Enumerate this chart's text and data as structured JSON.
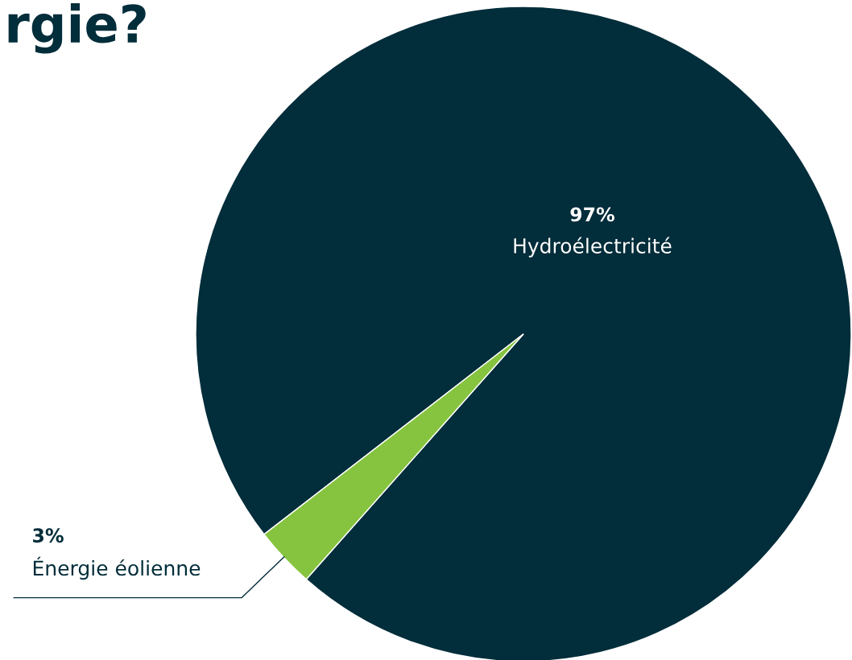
{
  "chart_data": {
    "type": "pie",
    "title": "rgie?",
    "categories": [
      "Hydroélectricité",
      "Énergie éolienne"
    ],
    "values": [
      97,
      3
    ],
    "colors": [
      "#022d3a",
      "#86c440"
    ],
    "value_labels": [
      "97%",
      "3%"
    ],
    "legend": false
  }
}
